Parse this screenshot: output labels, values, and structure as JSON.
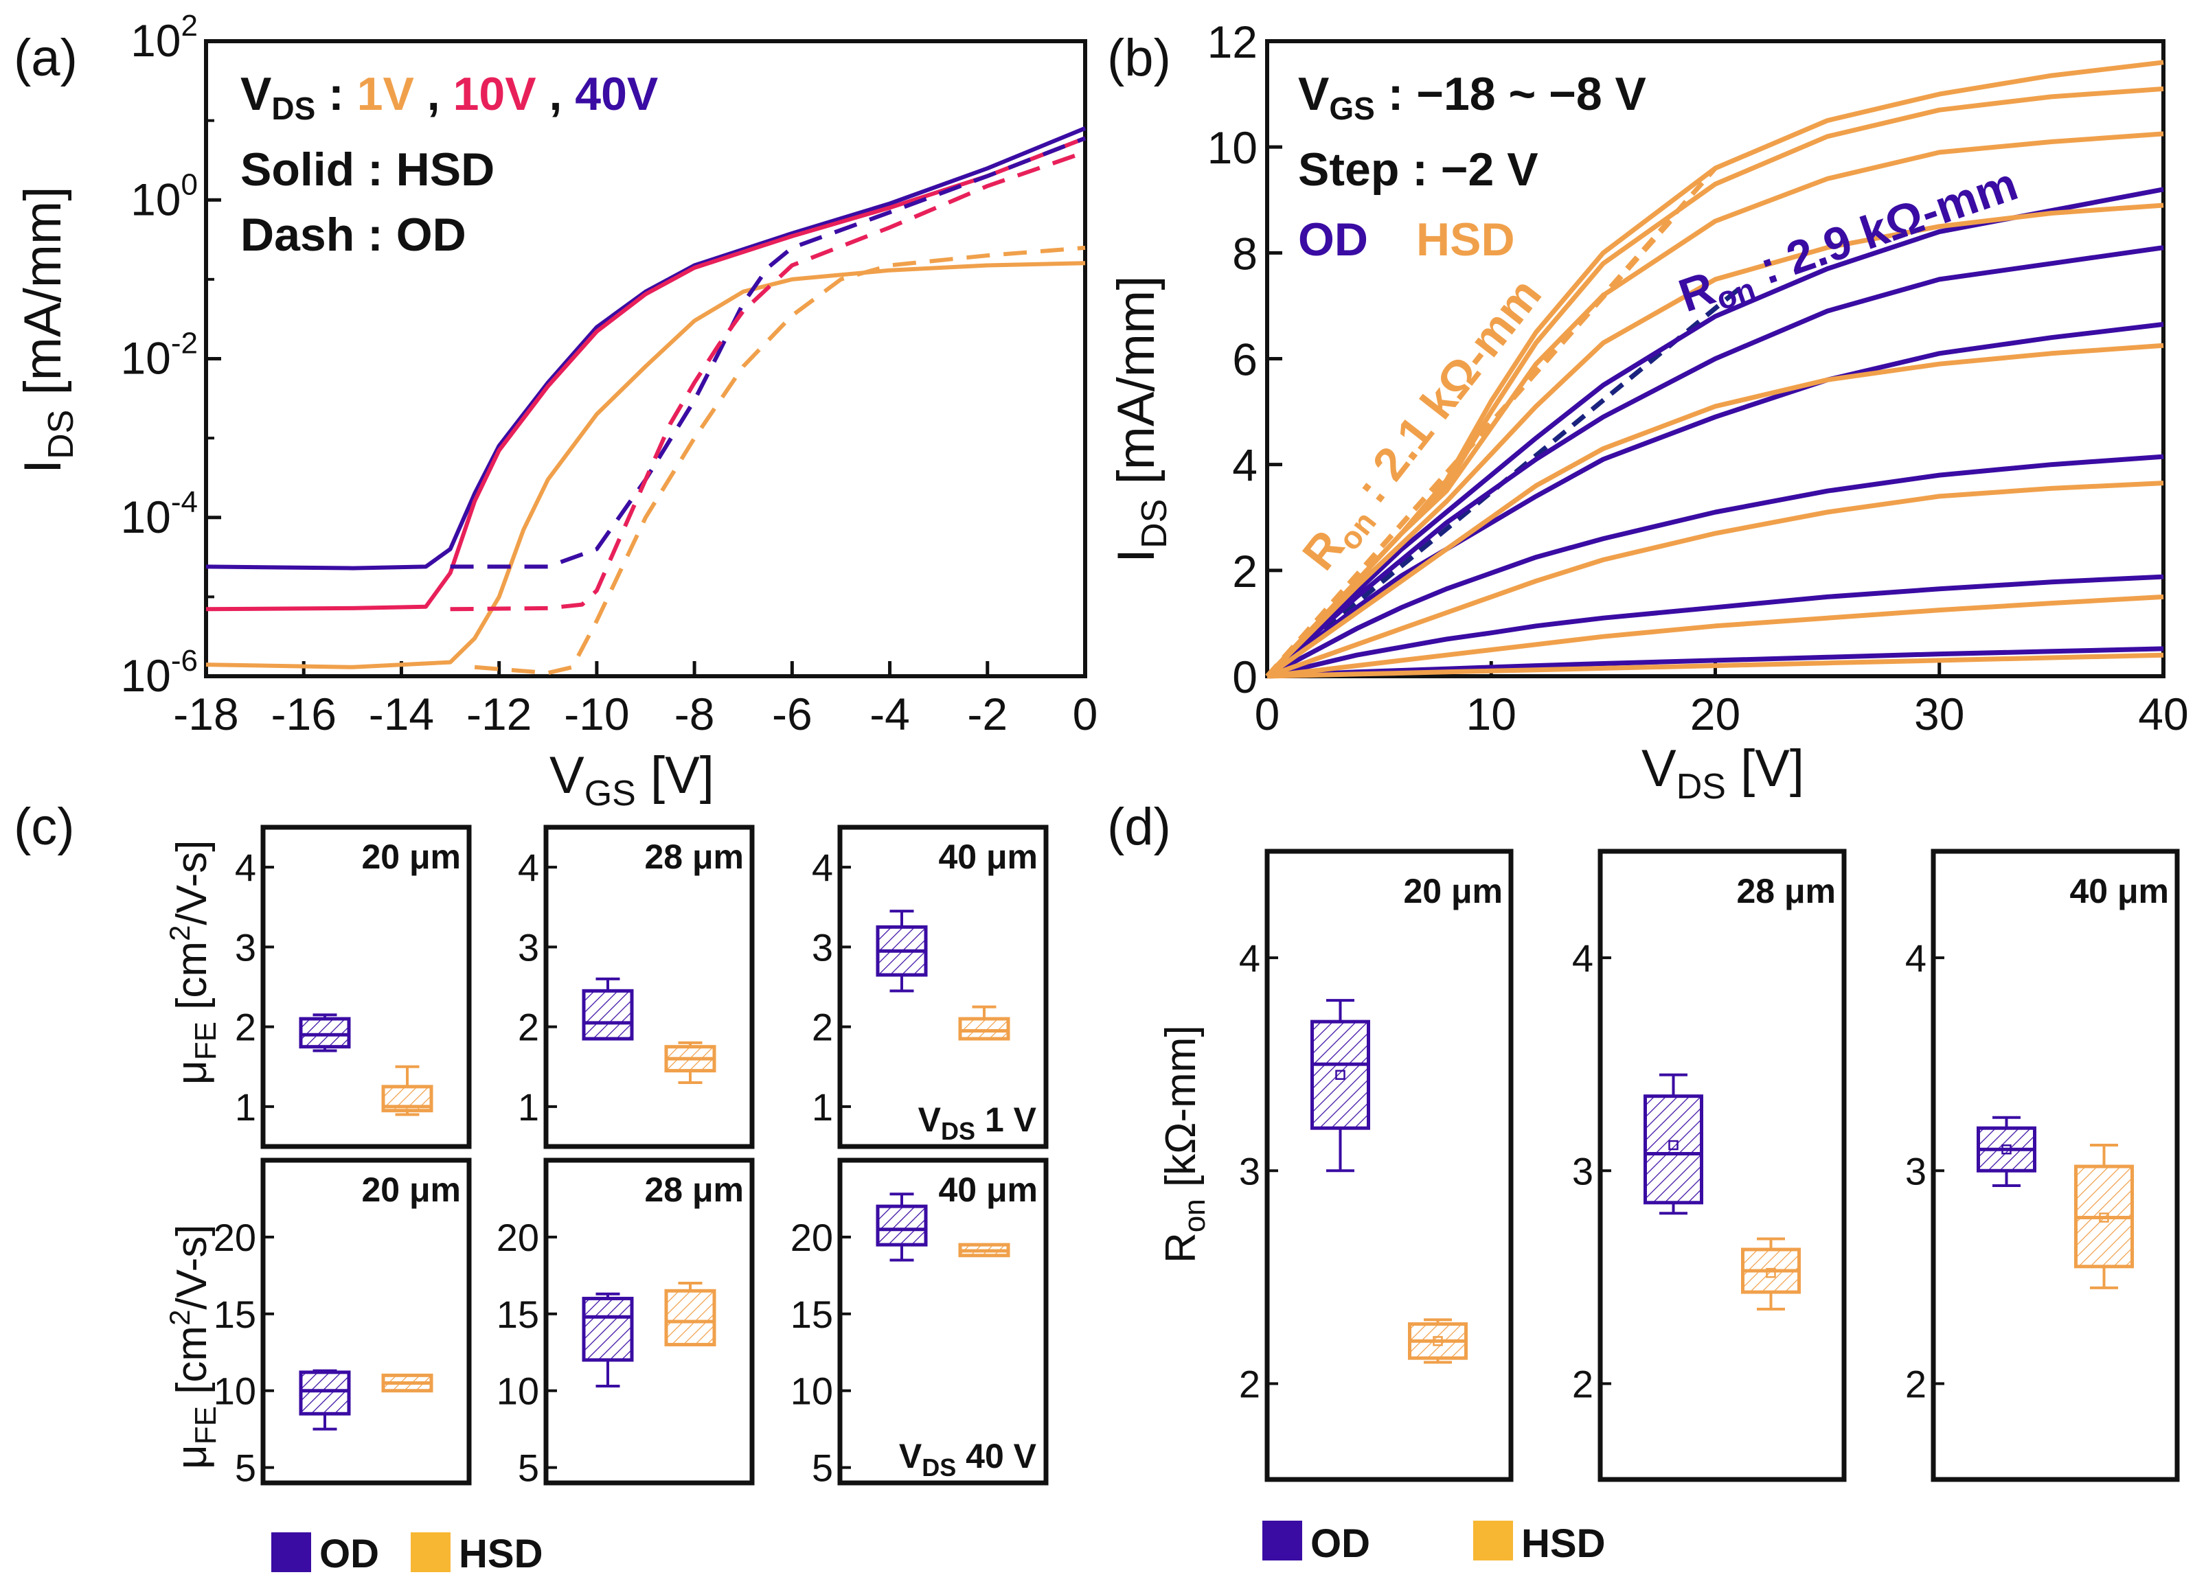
{
  "colors": {
    "od": "#3a0ca3",
    "hsd": "#f0a04b",
    "mid": "#e8205a",
    "hsd_fill": "#f5c06a",
    "od_dashfit": "#1a237e"
  },
  "chart_data": [
    {
      "id": "a",
      "panel_label": "(a)",
      "type": "line",
      "y_scale": "log",
      "xlabel_main": "V",
      "xlabel_sub": "GS",
      "xlabel_unit": " [V]",
      "ylabel_main": "I",
      "ylabel_sub": "DS",
      "ylabel_unit": " [mA/mm]",
      "xlim": [
        -18,
        0
      ],
      "ylim_exp": [
        -6,
        2
      ],
      "x_ticks": [
        "-18",
        "-16",
        "-14",
        "-12",
        "-10",
        "-8",
        "-6",
        "-4",
        "-2",
        "0"
      ],
      "y_ticks": [
        {
          "base": "10",
          "exp": "-6"
        },
        {
          "base": "10",
          "exp": "-4"
        },
        {
          "base": "10",
          "exp": "-2"
        },
        {
          "base": "10",
          "exp": "0"
        },
        {
          "base": "10",
          "exp": "2"
        }
      ],
      "annotation": {
        "vds_main": "V",
        "vds_sub": "DS",
        "vds_colon": " : ",
        "v1": "1V",
        "sep1": " , ",
        "v2": "10V",
        "sep2": " , ",
        "v3": "40V",
        "solid": "Solid : HSD",
        "dash": "Dash : OD"
      },
      "series": [
        {
          "name": "HSD 40V",
          "style": "solid",
          "color": "od",
          "x": [
            -18,
            -15,
            -13.5,
            -13,
            -12.5,
            -12,
            -11,
            -10,
            -9,
            -8,
            -6,
            -4,
            -2,
            0
          ],
          "y": [
            2.4e-05,
            2.3e-05,
            2.4e-05,
            4e-05,
            0.0002,
            0.0008,
            0.005,
            0.025,
            0.07,
            0.15,
            0.38,
            0.9,
            2.5,
            8
          ]
        },
        {
          "name": "HSD 10V",
          "style": "solid",
          "color": "mid",
          "x": [
            -18,
            -15,
            -13.5,
            -13,
            -12.5,
            -12,
            -11,
            -10,
            -9,
            -8,
            -6,
            -4,
            -2,
            0
          ],
          "y": [
            7e-06,
            7.2e-06,
            7.5e-06,
            2e-05,
            0.00016,
            0.0007,
            0.0045,
            0.022,
            0.065,
            0.14,
            0.35,
            0.8,
            2.0,
            6
          ]
        },
        {
          "name": "HSD 1V",
          "style": "solid",
          "color": "hsd",
          "x": [
            -18,
            -15,
            -13,
            -12.5,
            -12,
            -11.5,
            -11,
            -10,
            -9,
            -8,
            -7,
            -6,
            -4,
            -2,
            0
          ],
          "y": [
            1.4e-06,
            1.3e-06,
            1.5e-06,
            3e-06,
            1e-05,
            7e-05,
            0.0003,
            0.002,
            0.008,
            0.03,
            0.07,
            0.1,
            0.13,
            0.15,
            0.16
          ]
        },
        {
          "name": "OD 40V",
          "style": "dash",
          "color": "od",
          "x": [
            -13,
            -11,
            -10,
            -9,
            -8,
            -7.5,
            -7,
            -6.5,
            -6,
            -4,
            -2,
            0
          ],
          "y": [
            2.4e-05,
            2.4e-05,
            4e-05,
            0.0003,
            0.003,
            0.012,
            0.05,
            0.14,
            0.25,
            0.7,
            2,
            6
          ]
        },
        {
          "name": "OD 10V",
          "style": "dash",
          "color": "mid",
          "x": [
            -13,
            -11,
            -10.3,
            -10,
            -9.5,
            -9,
            -8.5,
            -8,
            -7.5,
            -7,
            -6,
            -4,
            -2,
            0
          ],
          "y": [
            7e-06,
            7.2e-06,
            8e-06,
            1.2e-05,
            6e-05,
            0.0003,
            0.0015,
            0.005,
            0.015,
            0.04,
            0.15,
            0.45,
            1.5,
            4
          ]
        },
        {
          "name": "OD 1V",
          "style": "dash",
          "color": "hsd",
          "x": [
            -12.5,
            -11,
            -10.5,
            -10,
            -9,
            -8,
            -7,
            -6,
            -5,
            -4,
            -2,
            0
          ],
          "y": [
            1.3e-06,
            1.1e-06,
            1.3e-06,
            5e-06,
            0.0001,
            0.001,
            0.008,
            0.035,
            0.1,
            0.15,
            0.2,
            0.25
          ]
        }
      ]
    },
    {
      "id": "b",
      "panel_label": "(b)",
      "type": "line",
      "xlabel_main": "V",
      "xlabel_sub": "DS",
      "xlabel_unit": " [V]",
      "ylabel_main": "I",
      "ylabel_sub": "DS",
      "ylabel_unit": " [mA/mm]",
      "xlim": [
        0,
        40
      ],
      "ylim": [
        0,
        12
      ],
      "x_ticks": [
        "0",
        "10",
        "20",
        "30",
        "40"
      ],
      "y_ticks": [
        "0",
        "2",
        "4",
        "6",
        "8",
        "10",
        "12"
      ],
      "annotation": {
        "vgs_main": "V",
        "vgs_sub": "GS",
        "vgs_rest": " : −18 ~ −8 V",
        "step": "Step : −2 V",
        "od": "OD",
        "hsd": "HSD",
        "ron_hsd_main": "R",
        "ron_hsd_sub": "on",
        "ron_hsd_val": " : 2.1 kΩ-mm",
        "ron_od_main": "R",
        "ron_od_sub": "on",
        "ron_od_val": " : 2.9 kΩ-mm"
      },
      "x": [
        0,
        2,
        4,
        6,
        8,
        10,
        12,
        15,
        20,
        25,
        30,
        35,
        40
      ],
      "series": [
        {
          "name": "OD -18V",
          "color": "od",
          "y": [
            0,
            0.8,
            1.6,
            2.4,
            3.1,
            3.8,
            4.5,
            5.5,
            6.8,
            7.7,
            8.4,
            8.8,
            9.2
          ]
        },
        {
          "name": "OD -16V",
          "color": "od",
          "y": [
            0,
            0.75,
            1.5,
            2.2,
            2.9,
            3.5,
            4.1,
            4.9,
            6.0,
            6.9,
            7.5,
            7.8,
            8.1
          ]
        },
        {
          "name": "OD -14V",
          "color": "od",
          "y": [
            0,
            0.65,
            1.3,
            1.9,
            2.4,
            2.9,
            3.4,
            4.1,
            4.9,
            5.6,
            6.1,
            6.4,
            6.65
          ]
        },
        {
          "name": "OD -12V",
          "color": "od",
          "y": [
            0,
            0.45,
            0.9,
            1.3,
            1.65,
            1.95,
            2.25,
            2.6,
            3.1,
            3.5,
            3.8,
            4.0,
            4.15
          ]
        },
        {
          "name": "OD -10V",
          "color": "od",
          "y": [
            0,
            0.2,
            0.4,
            0.55,
            0.7,
            0.82,
            0.95,
            1.1,
            1.3,
            1.5,
            1.65,
            1.78,
            1.88
          ]
        },
        {
          "name": "OD -8V",
          "color": "od",
          "y": [
            0,
            0.04,
            0.08,
            0.11,
            0.14,
            0.17,
            0.2,
            0.24,
            0.3,
            0.36,
            0.42,
            0.47,
            0.52
          ]
        },
        {
          "name": "HSD -18V",
          "color": "hsd",
          "y": [
            0,
            0.9,
            1.8,
            2.7,
            3.7,
            5.2,
            6.5,
            8.0,
            9.6,
            10.5,
            11.0,
            11.35,
            11.6
          ]
        },
        {
          "name": "HSD -16V",
          "color": "hsd",
          "y": [
            0,
            0.9,
            1.8,
            2.7,
            3.6,
            5.0,
            6.3,
            7.8,
            9.3,
            10.2,
            10.7,
            10.95,
            11.1
          ]
        },
        {
          "name": "HSD -14V",
          "color": "hsd",
          "y": [
            0,
            0.9,
            1.8,
            2.7,
            3.5,
            4.7,
            5.9,
            7.2,
            8.6,
            9.4,
            9.9,
            10.1,
            10.25
          ]
        },
        {
          "name": "HSD -12V",
          "color": "hsd",
          "y": [
            0,
            0.85,
            1.7,
            2.5,
            3.3,
            4.2,
            5.1,
            6.3,
            7.5,
            8.1,
            8.5,
            8.75,
            8.9
          ]
        },
        {
          "name": "HSD -10V",
          "color": "hsd",
          "y": [
            0,
            0.6,
            1.2,
            1.8,
            2.4,
            3.0,
            3.6,
            4.3,
            5.1,
            5.6,
            5.9,
            6.1,
            6.25
          ]
        },
        {
          "name": "HSD -8V",
          "color": "hsd",
          "y": [
            0,
            0.3,
            0.6,
            0.9,
            1.2,
            1.5,
            1.8,
            2.2,
            2.7,
            3.1,
            3.4,
            3.55,
            3.65
          ]
        },
        {
          "name": "HSD -6V",
          "color": "hsd",
          "y": [
            0,
            0.1,
            0.2,
            0.3,
            0.4,
            0.5,
            0.6,
            0.75,
            0.95,
            1.1,
            1.25,
            1.38,
            1.5
          ]
        },
        {
          "name": "HSD -4V",
          "color": "hsd",
          "y": [
            0,
            0.02,
            0.04,
            0.06,
            0.08,
            0.1,
            0.12,
            0.15,
            0.2,
            0.25,
            0.3,
            0.35,
            0.4
          ]
        }
      ],
      "fits": [
        {
          "name": "Ron HSD fit",
          "color": "hsd",
          "x": [
            0,
            20
          ],
          "y": [
            0,
            9.6
          ]
        },
        {
          "name": "Ron HSD fit 2",
          "color": "hsd",
          "x": [
            0,
            18
          ],
          "y": [
            0,
            8.6
          ]
        },
        {
          "name": "Ron OD fit",
          "color": "od_dashfit",
          "x": [
            0,
            21
          ],
          "y": [
            0,
            7.3
          ]
        }
      ]
    },
    {
      "id": "c",
      "panel_label": "(c)",
      "type": "box",
      "ylabel_top": {
        "main": "μ",
        "sub": "FE",
        "unit": " [cm",
        "sup": "2",
        "tail": "/V-s]"
      },
      "ylabel_bot": {
        "main": "μ",
        "sub": "FE",
        "unit": " [cm",
        "sup": "2",
        "tail": "/V-s]"
      },
      "subplots": [
        {
          "title": "20 μm",
          "row": "top",
          "ylim": [
            0.5,
            4.5
          ],
          "ticks": [
            "1",
            "2",
            "3",
            "4"
          ],
          "note": "",
          "boxes": [
            {
              "group": "OD",
              "q1": 1.75,
              "med": 1.9,
              "q3": 2.1,
              "min": 1.7,
              "max": 2.15
            },
            {
              "group": "HSD",
              "q1": 0.95,
              "med": 1.0,
              "q3": 1.25,
              "min": 0.9,
              "max": 1.5
            }
          ]
        },
        {
          "title": "28 μm",
          "row": "top",
          "ylim": [
            0.5,
            4.5
          ],
          "ticks": [
            "1",
            "2",
            "3",
            "4"
          ],
          "note": "",
          "boxes": [
            {
              "group": "OD",
              "q1": 1.85,
              "med": 2.05,
              "q3": 2.45,
              "min": 1.85,
              "max": 2.6
            },
            {
              "group": "HSD",
              "q1": 1.45,
              "med": 1.6,
              "q3": 1.75,
              "min": 1.3,
              "max": 1.8
            }
          ]
        },
        {
          "title": "40 μm",
          "row": "top",
          "ylim": [
            0.5,
            4.5
          ],
          "ticks": [
            "1",
            "2",
            "3",
            "4"
          ],
          "note_main": "V",
          "note_sub": "DS",
          "note_val": " 1 V",
          "boxes": [
            {
              "group": "OD",
              "q1": 2.65,
              "med": 2.95,
              "q3": 3.25,
              "min": 2.45,
              "max": 3.45
            },
            {
              "group": "HSD",
              "q1": 1.85,
              "med": 1.95,
              "q3": 2.1,
              "min": 1.85,
              "max": 2.25
            }
          ]
        },
        {
          "title": "20 μm",
          "row": "bot",
          "ylim": [
            4,
            25
          ],
          "ticks": [
            "5",
            "10",
            "15",
            "20"
          ],
          "note": "",
          "boxes": [
            {
              "group": "OD",
              "q1": 8.5,
              "med": 10,
              "q3": 11.2,
              "min": 7.5,
              "max": 11.3
            },
            {
              "group": "HSD",
              "q1": 10,
              "med": 10.5,
              "q3": 11,
              "min": 10,
              "max": 11
            }
          ]
        },
        {
          "title": "28 μm",
          "row": "bot",
          "ylim": [
            4,
            25
          ],
          "ticks": [
            "5",
            "10",
            "15",
            "20"
          ],
          "note": "",
          "boxes": [
            {
              "group": "OD",
              "q1": 12,
              "med": 14.8,
              "q3": 16,
              "min": 10.3,
              "max": 16.3
            },
            {
              "group": "HSD",
              "q1": 13,
              "med": 14.5,
              "q3": 16.5,
              "min": 13,
              "max": 17
            }
          ]
        },
        {
          "title": "40 μm",
          "row": "bot",
          "ylim": [
            4,
            25
          ],
          "ticks": [
            "5",
            "10",
            "15",
            "20"
          ],
          "note_main": "V",
          "note_sub": "DS",
          "note_val": " 40 V",
          "boxes": [
            {
              "group": "OD",
              "q1": 19.5,
              "med": 20.5,
              "q3": 22,
              "min": 18.5,
              "max": 22.8
            },
            {
              "group": "HSD",
              "q1": 18.8,
              "med": 19.1,
              "q3": 19.5,
              "min": 18.8,
              "max": 19.5
            }
          ]
        }
      ],
      "legend": [
        "OD",
        "HSD"
      ]
    },
    {
      "id": "d",
      "panel_label": "(d)",
      "type": "box",
      "ylabel_main": "R",
      "ylabel_sub": "on",
      "ylabel_unit": " [kΩ-mm]",
      "subplots": [
        {
          "title": "20 μm",
          "ylim": [
            1.55,
            4.5
          ],
          "ticks": [
            "2",
            "3",
            "4"
          ],
          "boxes": [
            {
              "group": "OD",
              "q1": 3.2,
              "med": 3.5,
              "q3": 3.7,
              "mean": 3.45,
              "min": 3.0,
              "max": 3.8
            },
            {
              "group": "HSD",
              "q1": 2.12,
              "med": 2.2,
              "q3": 2.28,
              "mean": 2.2,
              "min": 2.1,
              "max": 2.3
            }
          ]
        },
        {
          "title": "28 μm",
          "ylim": [
            1.55,
            4.5
          ],
          "ticks": [
            "2",
            "3",
            "4"
          ],
          "boxes": [
            {
              "group": "OD",
              "q1": 2.85,
              "med": 3.08,
              "q3": 3.35,
              "mean": 3.12,
              "min": 2.8,
              "max": 3.45
            },
            {
              "group": "HSD",
              "q1": 2.43,
              "med": 2.53,
              "q3": 2.63,
              "mean": 2.52,
              "min": 2.35,
              "max": 2.68
            }
          ]
        },
        {
          "title": "40 μm",
          "ylim": [
            1.55,
            4.5
          ],
          "ticks": [
            "2",
            "3",
            "4"
          ],
          "boxes": [
            {
              "group": "OD",
              "q1": 3.0,
              "med": 3.1,
              "q3": 3.2,
              "mean": 3.1,
              "min": 2.93,
              "max": 3.25
            },
            {
              "group": "HSD",
              "q1": 2.55,
              "med": 2.78,
              "q3": 3.02,
              "mean": 2.78,
              "min": 2.45,
              "max": 3.12
            }
          ]
        }
      ],
      "legend": [
        "OD",
        "HSD"
      ]
    }
  ]
}
